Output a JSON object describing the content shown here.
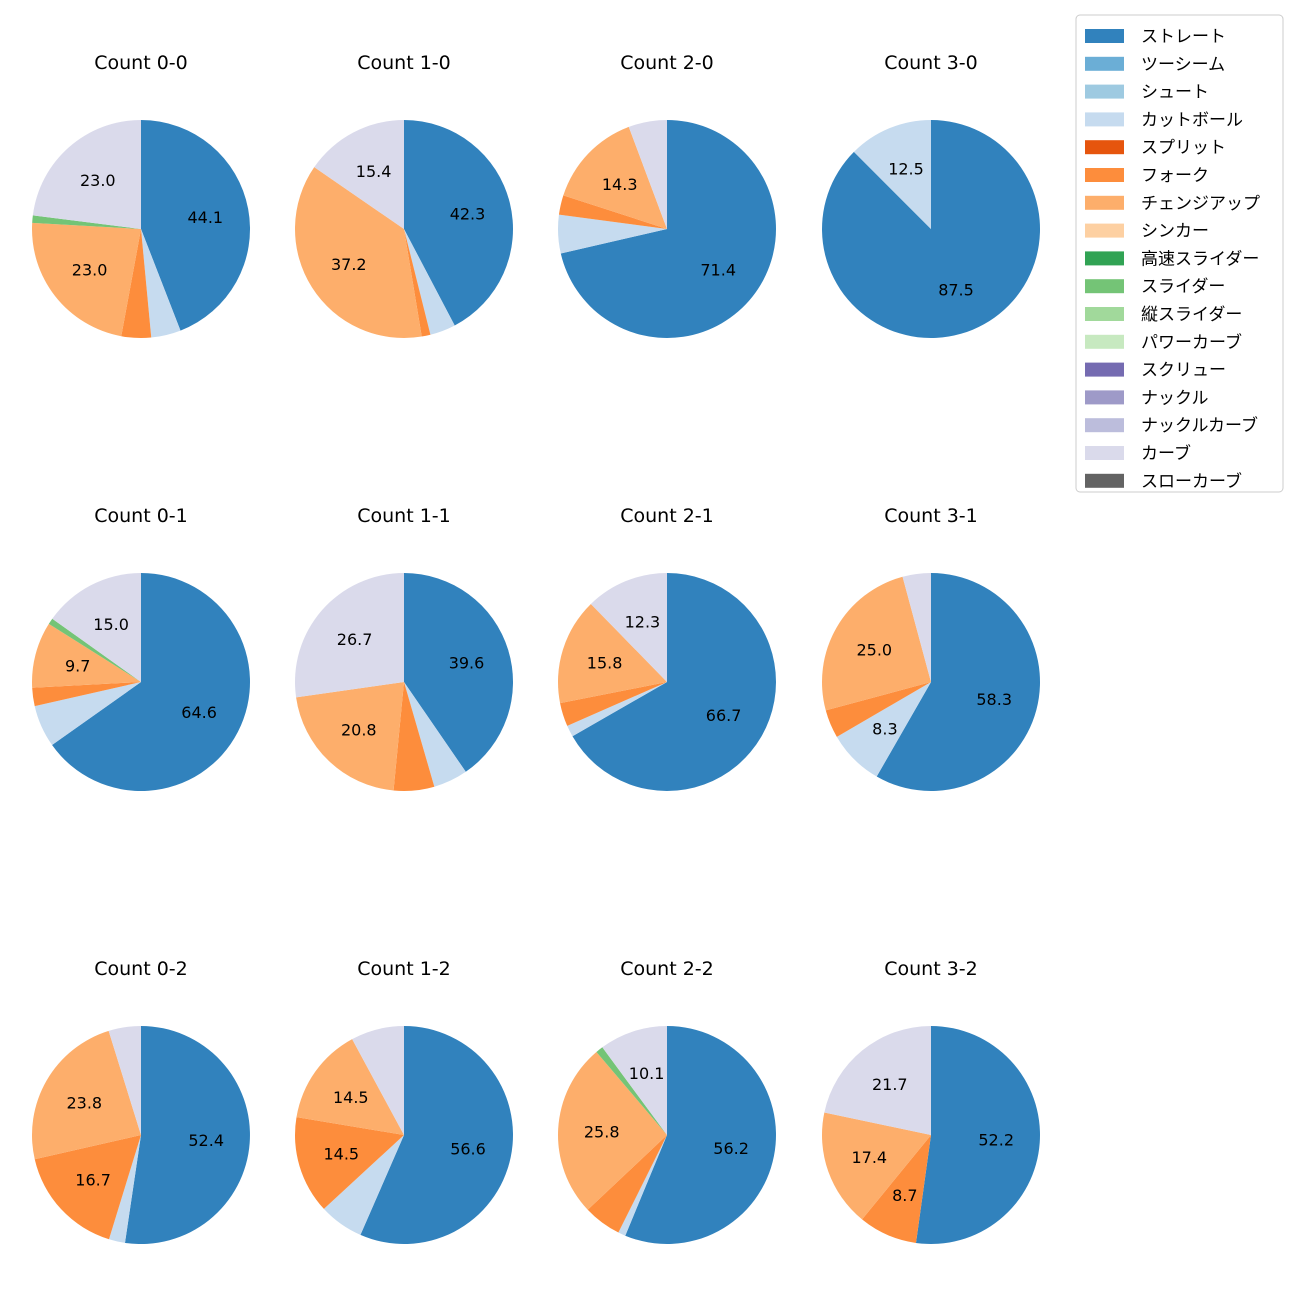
{
  "chart_data": {
    "type": "pie",
    "series_names": [
      "ストレート",
      "ツーシーム",
      "シュート",
      "カットボール",
      "スプリット",
      "フォーク",
      "チェンジアップ",
      "シンカー",
      "高速スライダー",
      "スライダー",
      "縦スライダー",
      "パワーカーブ",
      "スクリュー",
      "ナックル",
      "ナックルカーブ",
      "カーブ",
      "スローカーブ"
    ],
    "colors": [
      "#3182bd",
      "#6baed6",
      "#9ecae1",
      "#c6dbef",
      "#e6550d",
      "#fd8d3c",
      "#fdae6b",
      "#fdd0a2",
      "#31a354",
      "#74c476",
      "#a1d99b",
      "#c7e9c0",
      "#756bb1",
      "#9e9ac8",
      "#bcbddc",
      "#dadaeb",
      "#636363"
    ],
    "label_min_pct": 8,
    "charts": [
      {
        "title": "Count 0-0",
        "values": [
          44.1,
          0,
          0,
          4.4,
          0,
          4.4,
          23.0,
          0,
          0,
          1.1,
          0,
          0,
          0,
          0,
          0,
          23.0,
          0
        ]
      },
      {
        "title": "Count 1-0",
        "values": [
          42.3,
          0,
          0,
          3.8,
          0,
          1.3,
          37.2,
          0,
          0,
          0,
          0,
          0,
          0,
          0,
          0,
          15.4,
          0
        ]
      },
      {
        "title": "Count 2-0",
        "values": [
          71.4,
          0,
          0,
          5.7,
          0,
          2.9,
          14.3,
          0,
          0,
          0,
          0,
          0,
          0,
          0,
          0,
          5.7,
          0
        ]
      },
      {
        "title": "Count 3-0",
        "values": [
          87.5,
          0,
          0,
          12.5,
          0,
          0,
          0,
          0,
          0,
          0,
          0,
          0,
          0,
          0,
          0,
          0,
          0
        ]
      },
      {
        "title": "Count 0-1",
        "values": [
          64.6,
          0,
          0,
          6.2,
          0,
          2.7,
          9.7,
          0,
          0,
          0.9,
          0,
          0,
          0,
          0,
          0,
          15.0,
          0
        ]
      },
      {
        "title": "Count 1-1",
        "values": [
          39.6,
          0,
          0,
          5.0,
          0,
          5.9,
          20.8,
          0,
          0,
          0,
          0,
          0,
          0,
          0,
          0,
          26.7,
          0
        ]
      },
      {
        "title": "Count 2-1",
        "values": [
          66.7,
          0,
          0,
          1.7,
          0,
          3.5,
          15.8,
          0,
          0,
          0,
          0,
          0,
          0,
          0,
          0,
          12.3,
          0
        ]
      },
      {
        "title": "Count 3-1",
        "values": [
          58.3,
          0,
          0,
          8.3,
          0,
          4.2,
          25.0,
          0,
          0,
          0,
          0,
          0,
          0,
          0,
          0,
          4.2,
          0
        ]
      },
      {
        "title": "Count 0-2",
        "values": [
          52.4,
          0,
          0,
          2.4,
          0,
          16.7,
          23.8,
          0,
          0,
          0,
          0,
          0,
          0,
          0,
          0,
          4.8,
          0
        ]
      },
      {
        "title": "Count 1-2",
        "values": [
          56.6,
          0,
          0,
          6.6,
          0,
          14.5,
          14.5,
          0,
          0,
          0,
          0,
          0,
          0,
          0,
          0,
          7.9,
          0
        ]
      },
      {
        "title": "Count 2-2",
        "values": [
          56.2,
          0,
          0,
          1.1,
          0,
          5.6,
          25.8,
          0,
          0,
          1.1,
          0,
          0,
          0,
          0,
          0,
          10.1,
          0
        ]
      },
      {
        "title": "Count 3-2",
        "values": [
          52.2,
          0,
          0,
          0,
          0,
          8.7,
          17.4,
          0,
          0,
          0,
          0,
          0,
          0,
          0,
          0,
          21.7,
          0
        ]
      }
    ],
    "legend_position": "top-right"
  }
}
